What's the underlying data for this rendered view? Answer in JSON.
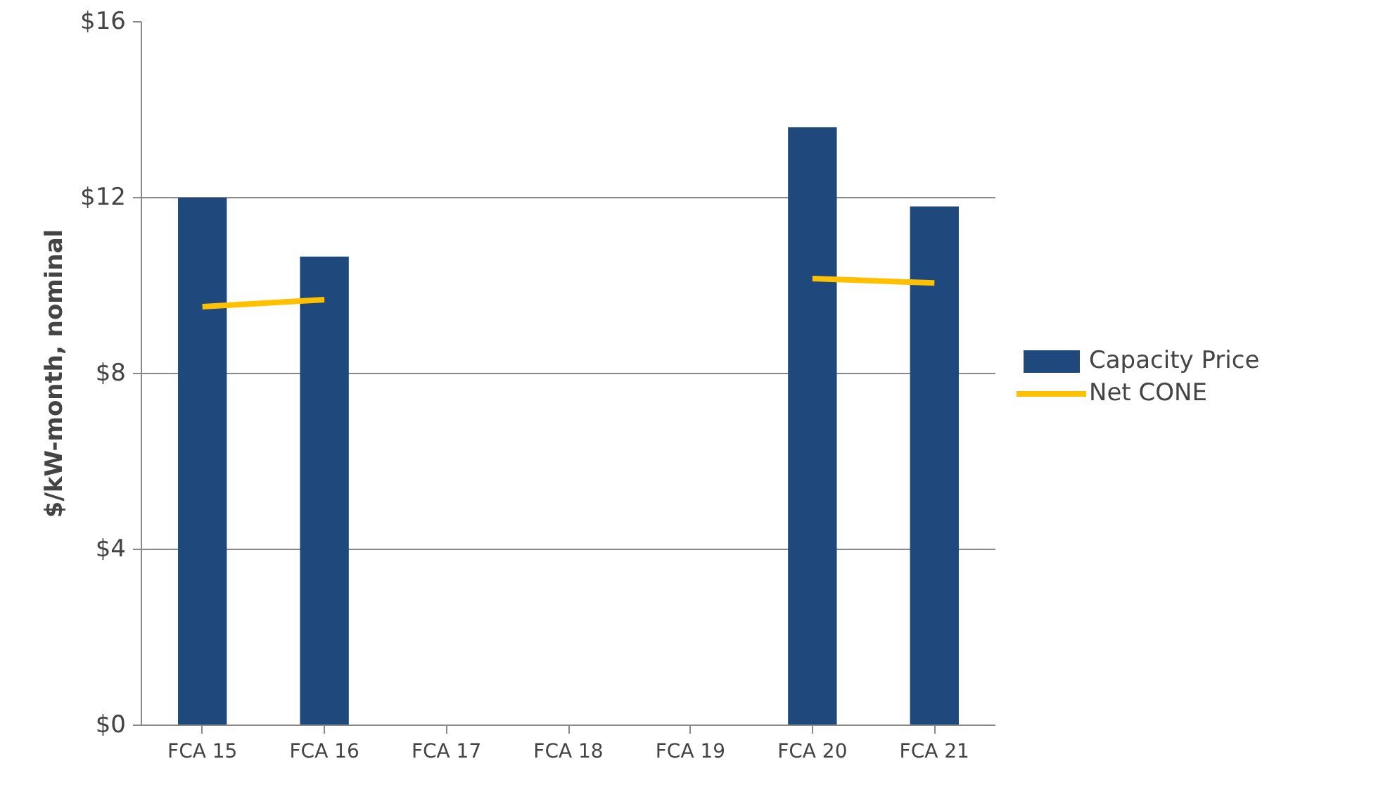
{
  "chart_data": {
    "type": "bar",
    "ylabel": "$/kW-month, nominal",
    "categories": [
      "FCA 15",
      "FCA 16",
      "FCA 17",
      "FCA 18",
      "FCA 19",
      "FCA 20",
      "FCA 21"
    ],
    "series": [
      {
        "name": "Capacity Price",
        "color": "#1f497d",
        "values": [
          12.0,
          10.66,
          null,
          null,
          null,
          13.6,
          11.8
        ]
      },
      {
        "name": "Net CONE",
        "type": "line",
        "color": "#ffc000",
        "values": [
          9.52,
          9.68,
          null,
          null,
          null,
          10.16,
          10.06
        ]
      }
    ],
    "ylim": [
      0,
      16
    ],
    "yticks": [
      {
        "value": 0,
        "label": "$0"
      },
      {
        "value": 4,
        "label": "$4"
      },
      {
        "value": 8,
        "label": "$8"
      },
      {
        "value": 12,
        "label": "$12"
      },
      {
        "value": 16,
        "label": "$16"
      }
    ],
    "grid": "y",
    "legend": "right",
    "marker": "none",
    "line_style": "solid"
  }
}
